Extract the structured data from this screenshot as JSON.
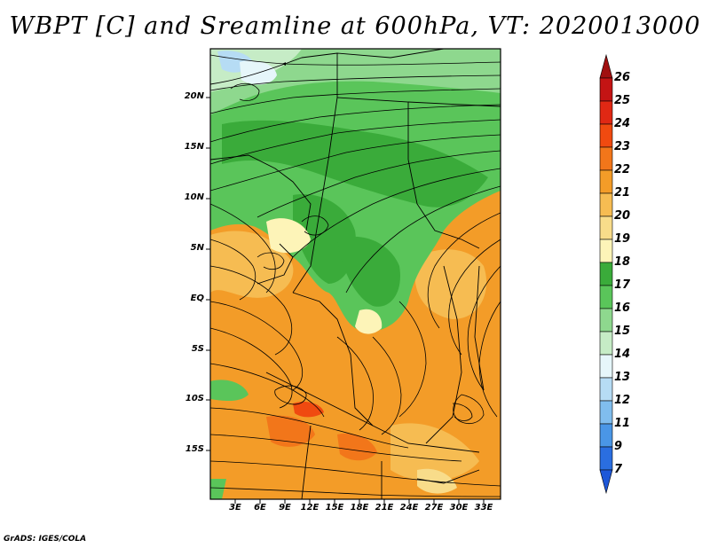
{
  "title": "WBPT [C] and Sreamline at 600hPa, VT: 2020013000",
  "credit": "GrADS: IGES/COLA",
  "lat_labels": [
    "20N",
    "15N",
    "10N",
    "5N",
    "EQ",
    "5S",
    "10S",
    "15S"
  ],
  "lon_labels": [
    "3E",
    "6E",
    "9E",
    "12E",
    "15E",
    "18E",
    "21E",
    "24E",
    "27E",
    "30E",
    "33E"
  ],
  "colorbar": {
    "labels": [
      "26",
      "25",
      "24",
      "23",
      "22",
      "21",
      "20",
      "19",
      "18",
      "17",
      "16",
      "15",
      "14",
      "13",
      "12",
      "11",
      "9",
      "7"
    ],
    "colors": [
      "#a01010",
      "#c41414",
      "#e02814",
      "#f04a10",
      "#f2761a",
      "#f39c28",
      "#f6bc52",
      "#f8dc8a",
      "#fdf4b8",
      "#3aab3a",
      "#5ac55a",
      "#8ed88e",
      "#c6ecc6",
      "#e6f6fa",
      "#b6dcf4",
      "#80bdee",
      "#4a96e6",
      "#2a6ee0",
      "#1d57d8"
    ]
  }
}
